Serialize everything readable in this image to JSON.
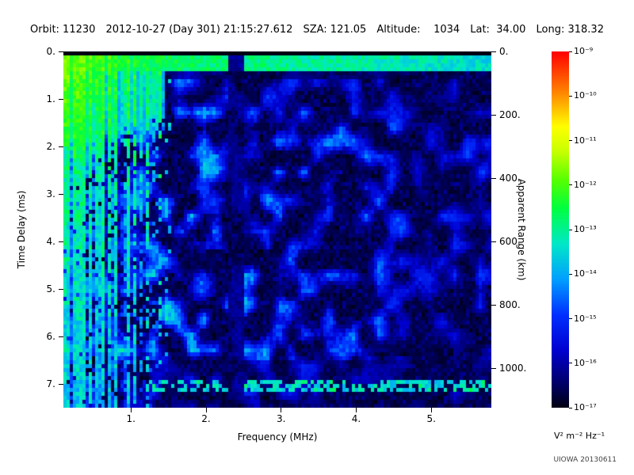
{
  "header": {
    "items": [
      "Orbit: 11230",
      "2012-10-27 (Day 301) 21:15:27.612",
      "SZA: 121.05",
      "Altitude:    1034",
      "Lat:  34.00",
      "Long: 318.32"
    ]
  },
  "watermark": "UIOWA 20130611",
  "chart_data": {
    "type": "heatmap",
    "title": "",
    "description": "Radar sounder ionogram/spectrogram: received spectral density vs sounding frequency and echo time delay",
    "xlabel": "Frequency (MHz)",
    "ylabel_left": "Time Delay (ms)",
    "ylabel_right": "Apparent Range (km)",
    "x_range_mhz": [
      0.1,
      5.8
    ],
    "y_range_ms": [
      0,
      7.5
    ],
    "x_ticks_mhz": [
      1,
      2,
      3,
      4,
      5
    ],
    "x_tick_labels": [
      "1.",
      "2.",
      "3.",
      "4.",
      "5."
    ],
    "y_ticks_ms": [
      0,
      1,
      2,
      3,
      4,
      5,
      6,
      7
    ],
    "y_tick_labels": [
      "0.",
      "1.",
      "2.",
      "3.",
      "4.",
      "5.",
      "6.",
      "7."
    ],
    "right_axis": {
      "ticks_km": [
        0,
        200,
        400,
        600,
        800,
        1000
      ],
      "tick_labels": [
        "0.",
        "200.",
        "400.",
        "600.",
        "800.",
        "1000."
      ],
      "km_per_ms": 150
    },
    "colorbar": {
      "scale": "log10",
      "exponent_range": [
        -9,
        -17
      ],
      "tick_labels": [
        "10⁻⁹",
        "10⁻¹⁰",
        "10⁻¹¹",
        "10⁻¹²",
        "10⁻¹³",
        "10⁻¹⁴",
        "10⁻¹⁵",
        "10⁻¹⁶",
        "10⁻¹⁷"
      ],
      "units": "V² m⁻² Hz⁻¹",
      "stops": [
        [
          0.0,
          "#000014"
        ],
        [
          0.06,
          "#000060"
        ],
        [
          0.16,
          "#0000d0"
        ],
        [
          0.26,
          "#0030ff"
        ],
        [
          0.36,
          "#00a0ff"
        ],
        [
          0.46,
          "#00e8c8"
        ],
        [
          0.56,
          "#00ff40"
        ],
        [
          0.64,
          "#58ff00"
        ],
        [
          0.72,
          "#c8ff00"
        ],
        [
          0.79,
          "#ffff00"
        ],
        [
          0.89,
          "#ff8000"
        ],
        [
          1.0,
          "#ff0000"
        ]
      ]
    },
    "features": [
      {
        "name": "background",
        "log10_intensity": -16.9
      },
      {
        "name": "transmitter-pulse-band",
        "t_ms": [
          0.08,
          0.45
        ],
        "f_mhz": [
          0.1,
          5.8
        ],
        "log10_intensity": -12.5
      },
      {
        "name": "ionospheric-echo-patch",
        "f_mhz_max": 1.45,
        "t_ms_max": 2.0,
        "log10_intensity": -12.3
      },
      {
        "name": "low-frequency-interference-stripes",
        "f_mhz_max": 1.55,
        "log10_intensity_max": -13.0
      },
      {
        "name": "absorption-gap",
        "f_mhz": [
          2.28,
          2.52
        ]
      },
      {
        "name": "surface-reflection-line",
        "t_ms": [
          6.88,
          7.16
        ],
        "f_mhz_min": 1.25,
        "log10_intensity": -13.5,
        "dashed": true
      },
      {
        "name": "diffuse-blue-mottle",
        "f_mhz": [
          1.5,
          5.8
        ],
        "log10_intensity_range": [
          -16.5,
          -13.8
        ]
      }
    ]
  }
}
